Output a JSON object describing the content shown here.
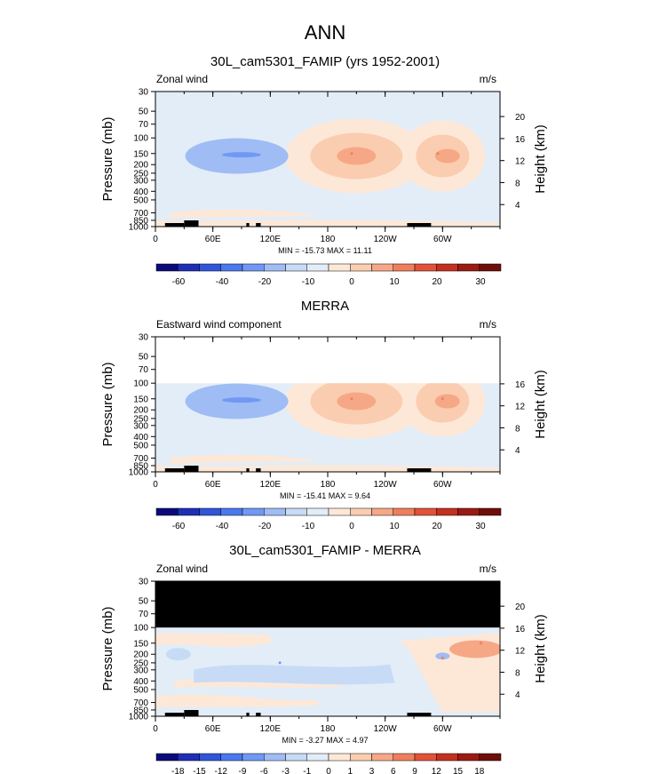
{
  "page_title": "ANN",
  "chart_data": [
    {
      "type": "heatmap",
      "title": "30L_cam5301_FAMIP (yrs 1952-2001)",
      "variable": "Zonal wind",
      "units": "m/s",
      "ylabel": "Pressure (mb)",
      "ylabel_right": "Height (km)",
      "pressure_ticks": [
        "30",
        "50",
        "70",
        "100",
        "150",
        "200",
        "250",
        "300",
        "400",
        "500",
        "700",
        "850",
        "1000"
      ],
      "height_ticks": [
        "20",
        "16",
        "12",
        "8",
        "4"
      ],
      "x_ticks": [
        "0",
        "60E",
        "120E",
        "180",
        "120W",
        "60W"
      ],
      "min_max": "MIN = -15.73   MAX =  11.11",
      "min": -15.73,
      "max": 11.11,
      "colorbar_labels": [
        "-60",
        "-40",
        "-20",
        "-10",
        "0",
        "10",
        "20",
        "30"
      ],
      "colorbar_colors": [
        "#0a0a7a",
        "#1e2fb5",
        "#2f56d9",
        "#4a78ee",
        "#7198f4",
        "#9fbcf5",
        "#c7dbf6",
        "#e2edf8",
        "#fde8d8",
        "#fbcdb0",
        "#f6a886",
        "#ef7f5c",
        "#e2523a",
        "#c4301f",
        "#9a1b12",
        "#6e0e0a"
      ],
      "data_top_mb": 30,
      "features": [
        {
          "pressure_mb": 150,
          "lon_deg": 85,
          "value": -14
        },
        {
          "pressure_mb": 150,
          "lon_deg": 205,
          "value": 11
        },
        {
          "pressure_mb": 150,
          "lon_deg": 295,
          "value": 10
        }
      ]
    },
    {
      "type": "heatmap",
      "title": "MERRA",
      "variable": "Eastward wind component",
      "units": "m/s",
      "ylabel": "Pressure (mb)",
      "ylabel_right": "Height (km)",
      "pressure_ticks": [
        "30",
        "50",
        "70",
        "100",
        "150",
        "200",
        "250",
        "300",
        "400",
        "500",
        "700",
        "850",
        "1000"
      ],
      "height_ticks": [
        "16",
        "12",
        "8",
        "4"
      ],
      "x_ticks": [
        "0",
        "60E",
        "120E",
        "180",
        "120W",
        "60W"
      ],
      "min_max": "MIN = -15.41   MAX =  9.64",
      "min": -15.41,
      "max": 9.64,
      "colorbar_labels": [
        "-60",
        "-40",
        "-20",
        "-10",
        "0",
        "10",
        "20",
        "30"
      ],
      "colorbar_colors": [
        "#0a0a7a",
        "#1e2fb5",
        "#2f56d9",
        "#4a78ee",
        "#7198f4",
        "#9fbcf5",
        "#c7dbf6",
        "#e2edf8",
        "#fde8d8",
        "#fbcdb0",
        "#f6a886",
        "#ef7f5c",
        "#e2523a",
        "#c4301f",
        "#9a1b12",
        "#6e0e0a"
      ],
      "data_top_mb": 100,
      "features": [
        {
          "pressure_mb": 150,
          "lon_deg": 85,
          "value": -14
        },
        {
          "pressure_mb": 150,
          "lon_deg": 205,
          "value": 9
        },
        {
          "pressure_mb": 150,
          "lon_deg": 300,
          "value": 7
        }
      ]
    },
    {
      "type": "heatmap",
      "title": "30L_cam5301_FAMIP - MERRA",
      "variable": "Zonal wind",
      "units": "m/s",
      "ylabel": "Pressure (mb)",
      "ylabel_right": "Height (km)",
      "pressure_ticks": [
        "30",
        "50",
        "70",
        "100",
        "150",
        "200",
        "250",
        "300",
        "400",
        "500",
        "700",
        "850",
        "1000"
      ],
      "height_ticks": [
        "20",
        "16",
        "12",
        "8",
        "4"
      ],
      "x_ticks": [
        "0",
        "60E",
        "120E",
        "180",
        "120W",
        "60W"
      ],
      "min_max": "MIN = -3.27   MAX =  4.97",
      "min": -3.27,
      "max": 4.97,
      "colorbar_labels": [
        "-18",
        "-15",
        "-12",
        "-9",
        "-6",
        "-3",
        "-1",
        "0",
        "1",
        "3",
        "6",
        "9",
        "12",
        "15",
        "18"
      ],
      "colorbar_colors": [
        "#0a0a7a",
        "#1e2fb5",
        "#2f56d9",
        "#4a78ee",
        "#7198f4",
        "#9fbcf5",
        "#c7dbf6",
        "#e2edf8",
        "#fde8d8",
        "#fbcdb0",
        "#f6a886",
        "#ef7f5c",
        "#e2523a",
        "#c4301f",
        "#9a1b12",
        "#6e0e0a"
      ],
      "data_top_mb": 100,
      "masked_region": "30-100 mb (black)",
      "features": [
        {
          "pressure_mb": 250,
          "lon_deg": 130,
          "value": -2
        },
        {
          "pressure_mb": 150,
          "lon_deg": 340,
          "value": 4.5
        },
        {
          "pressure_mb": 220,
          "lon_deg": 300,
          "value": 2
        }
      ]
    }
  ]
}
